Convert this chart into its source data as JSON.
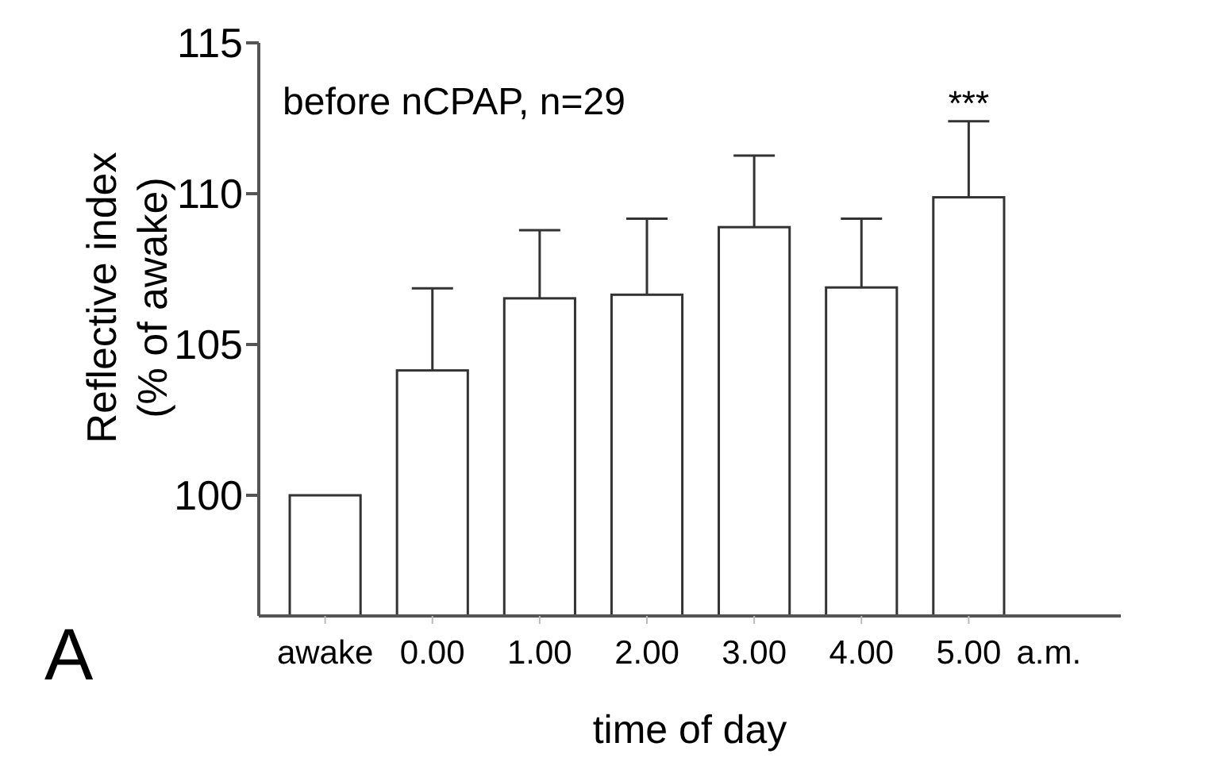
{
  "chart_data": {
    "type": "bar",
    "categories": [
      "awake",
      "0.00",
      "1.00",
      "2.00",
      "3.00",
      "4.00",
      "5.00"
    ],
    "values": [
      100,
      104.14,
      106.53,
      106.65,
      108.89,
      106.89,
      109.88
    ],
    "errors": [
      null,
      [
        104.14,
        106.86
      ],
      [
        106.53,
        108.79
      ],
      [
        106.65,
        109.17
      ],
      [
        108.89,
        111.26
      ],
      [
        106.89,
        109.17
      ],
      [
        109.88,
        112.4
      ]
    ],
    "color": "#ffffff",
    "xlabel": "time of day",
    "ylabel": "Reflective index\n(% of awake)",
    "ylim": [
      96,
      115
    ],
    "yticks": [
      100,
      105,
      110,
      115
    ],
    "annotations": [
      "before nCPAP, n=29",
      "***",
      "a.m.",
      "A"
    ],
    "grid": false
  }
}
